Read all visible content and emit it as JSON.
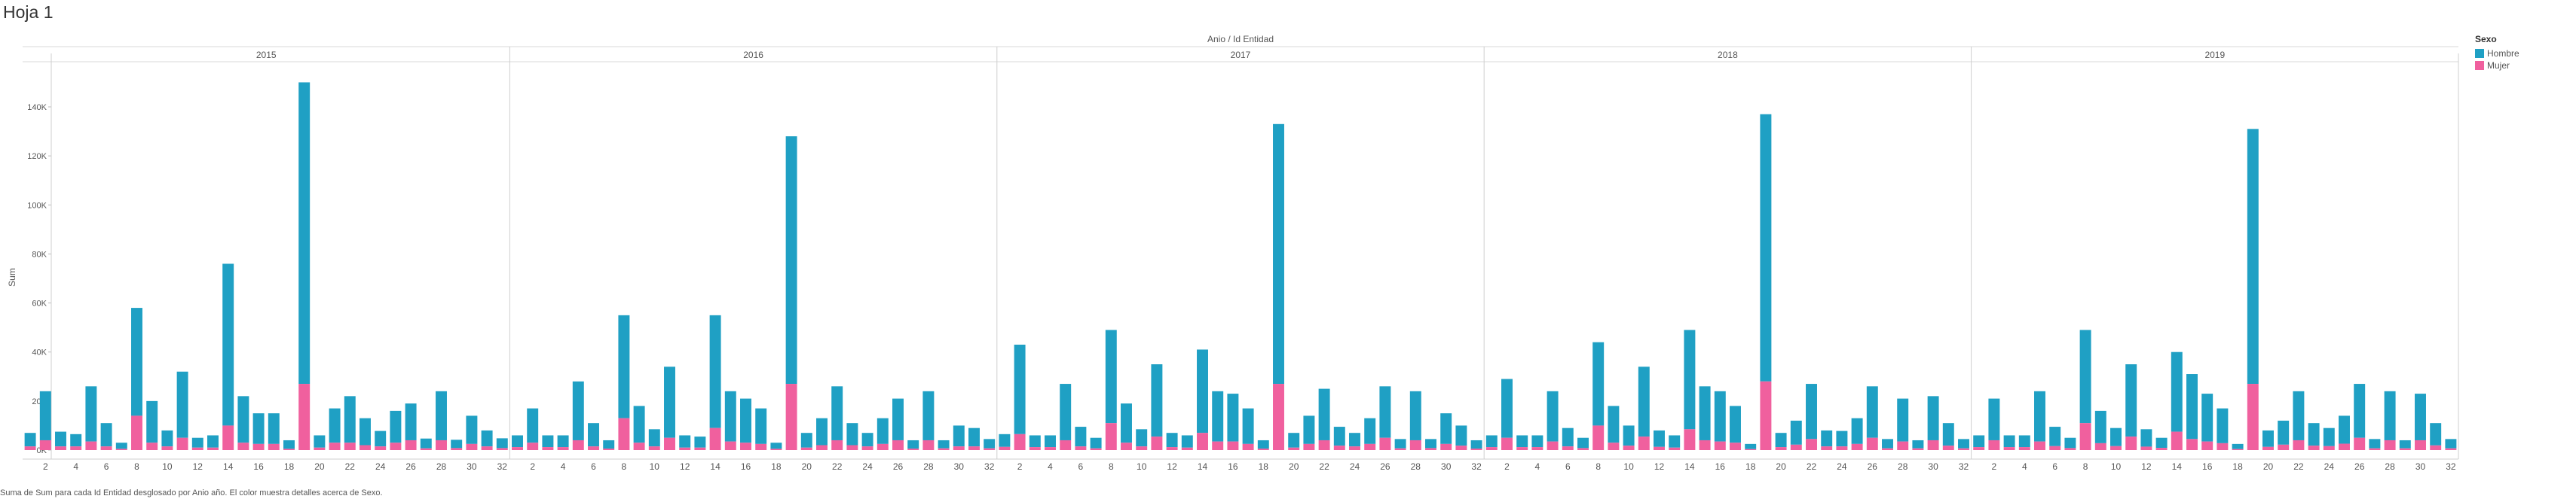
{
  "sheet": {
    "title": "Hoja 1"
  },
  "caption": "Suma de Sum para cada Id Entidad desglosado por Anio año.  El color muestra detalles acerca de Sexo.",
  "legend": {
    "title": "Sexo",
    "items": [
      {
        "label": "Hombre",
        "color": "#1fa0c4"
      },
      {
        "label": "Mujer",
        "color": "#f0609e"
      }
    ]
  },
  "chart_data": {
    "type": "bar",
    "stacked": true,
    "title": "Anio / Id Entidad",
    "ylabel": "Sum",
    "ylim": [
      0,
      160000
    ],
    "yticks": [
      0,
      20000,
      40000,
      60000,
      80000,
      100000,
      120000,
      140000
    ],
    "ytick_labels": [
      "0K",
      "20K",
      "40K",
      "60K",
      "80K",
      "100K",
      "120K",
      "140K"
    ],
    "xtick_labels": [
      "2",
      "4",
      "6",
      "8",
      "10",
      "12",
      "14",
      "16",
      "18",
      "20",
      "22",
      "24",
      "26",
      "28",
      "30",
      "32"
    ],
    "entities": [
      1,
      2,
      3,
      4,
      5,
      6,
      7,
      8,
      9,
      10,
      11,
      12,
      13,
      14,
      15,
      16,
      17,
      18,
      19,
      20,
      21,
      22,
      23,
      24,
      25,
      26,
      27,
      28,
      29,
      30,
      31,
      32
    ],
    "grid": false,
    "legend_position": "right",
    "panels": [
      {
        "year": "2015",
        "total": [
          7000,
          24000,
          7500,
          6500,
          26000,
          11000,
          3000,
          58000,
          20000,
          8000,
          32000,
          5000,
          6000,
          76000,
          22000,
          15000,
          15000,
          4000,
          150000,
          6000,
          17000,
          22000,
          13000,
          7800,
          16000,
          19000,
          4700,
          24000,
          4200,
          14000,
          8000,
          4800
        ],
        "mujer": [
          1500,
          4000,
          1500,
          1500,
          3500,
          1500,
          500,
          14000,
          3000,
          1500,
          5000,
          1000,
          1000,
          10000,
          3000,
          2500,
          2500,
          500,
          27000,
          1000,
          3000,
          3000,
          2000,
          1500,
          3000,
          4000,
          700,
          4000,
          800,
          2500,
          1500,
          800
        ]
      },
      {
        "year": "2016",
        "total": [
          6000,
          17000,
          6000,
          6000,
          28000,
          11000,
          4000,
          55000,
          18000,
          8500,
          34000,
          6000,
          5500,
          55000,
          24000,
          21000,
          17000,
          3000,
          128000,
          7000,
          13000,
          26000,
          11000,
          7000,
          13000,
          21000,
          4000,
          24000,
          4000,
          10000,
          9000,
          4500
        ],
        "mujer": [
          1200,
          3000,
          1200,
          1200,
          4000,
          1500,
          600,
          13000,
          3000,
          1500,
          5000,
          1000,
          1000,
          9000,
          3500,
          3000,
          2500,
          500,
          27000,
          1000,
          2000,
          4000,
          2000,
          1500,
          2500,
          4000,
          600,
          4000,
          700,
          1500,
          1500,
          700
        ]
      },
      {
        "year": "2017",
        "total": [
          6500,
          43000,
          6000,
          6000,
          27000,
          9500,
          5000,
          49000,
          19000,
          8500,
          35000,
          7000,
          6000,
          41000,
          24000,
          23000,
          17000,
          4000,
          133000,
          7000,
          14000,
          25000,
          9500,
          7000,
          13000,
          26000,
          4500,
          24000,
          4500,
          15000,
          10000,
          4000
        ],
        "mujer": [
          1300,
          6500,
          1200,
          1200,
          4000,
          1500,
          700,
          11000,
          3000,
          1500,
          5500,
          1200,
          1000,
          7000,
          3500,
          3500,
          2500,
          600,
          27000,
          1000,
          2500,
          4000,
          1800,
          1500,
          2500,
          5000,
          700,
          4000,
          800,
          2500,
          1800,
          600
        ]
      },
      {
        "year": "2018",
        "total": [
          6000,
          29000,
          6000,
          6000,
          24000,
          9000,
          5000,
          44000,
          18000,
          10000,
          34000,
          8000,
          6000,
          49000,
          26000,
          24000,
          18000,
          2500,
          137000,
          7000,
          12000,
          27000,
          8000,
          7800,
          13000,
          26000,
          4500,
          21000,
          4000,
          22000,
          11000,
          4500
        ],
        "mujer": [
          1200,
          5000,
          1200,
          1200,
          3500,
          1500,
          800,
          10000,
          3000,
          1800,
          5500,
          1300,
          1000,
          8500,
          4000,
          3500,
          3000,
          400,
          28000,
          1200,
          2200,
          4500,
          1500,
          1500,
          2500,
          5000,
          700,
          3500,
          700,
          4000,
          1800,
          700
        ]
      },
      {
        "year": "2019",
        "total": [
          6000,
          21000,
          6000,
          6000,
          24000,
          9500,
          5000,
          49000,
          16000,
          9000,
          35000,
          8500,
          5000,
          40000,
          31000,
          23000,
          17000,
          2500,
          131000,
          8000,
          12000,
          24000,
          11000,
          9000,
          14000,
          27000,
          4500,
          24000,
          4000,
          23000,
          11000,
          4500
        ],
        "mujer": [
          1200,
          4000,
          1200,
          1200,
          3500,
          1600,
          800,
          11000,
          2800,
          1600,
          5500,
          1400,
          900,
          7500,
          4500,
          3500,
          2800,
          400,
          27000,
          1300,
          2200,
          4000,
          1800,
          1600,
          2600,
          5000,
          700,
          4000,
          700,
          4000,
          1900,
          700
        ]
      }
    ]
  }
}
